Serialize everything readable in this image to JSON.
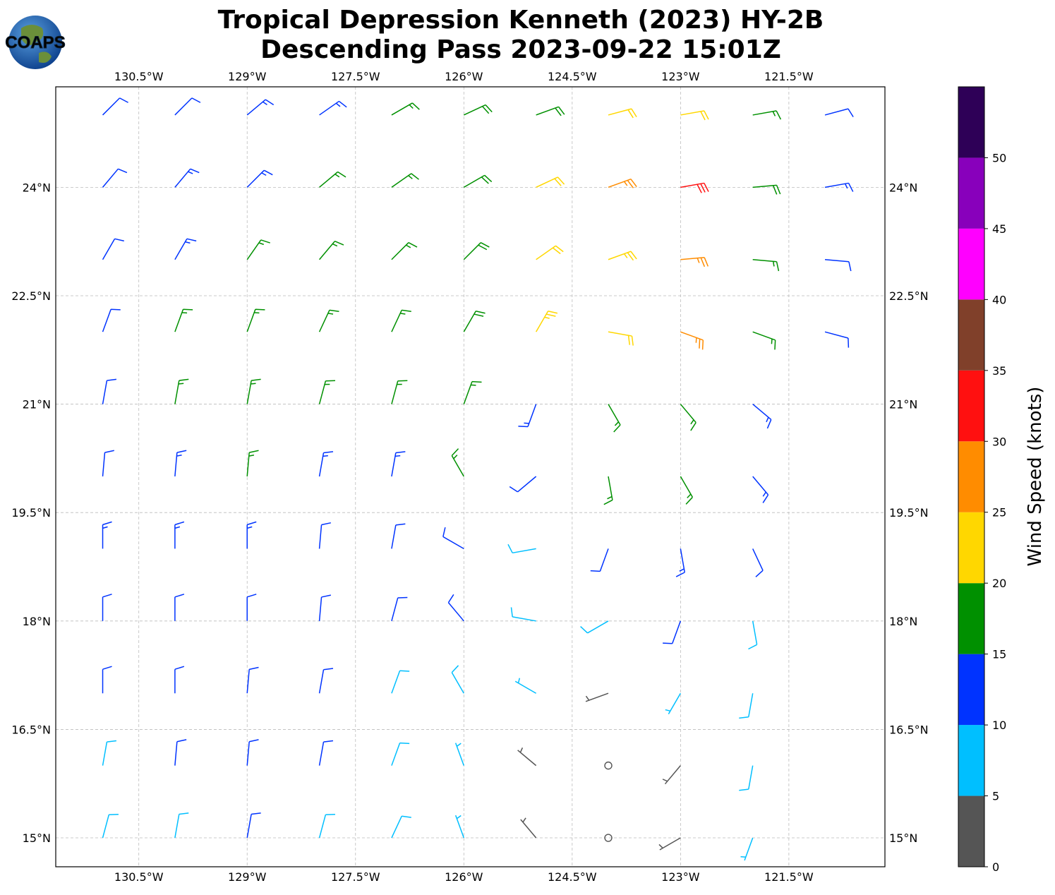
{
  "map": {
    "type": "wind_barbs",
    "title": [
      "Tropical Depression Kenneth (2023) HY-2B",
      "Descending Pass 2023-09-22 15:01Z"
    ],
    "logo_text": "COAPS",
    "xlim": [
      -131.65,
      -120.17
    ],
    "ylim": [
      14.6,
      25.39
    ],
    "xticks": [
      {
        "value": -130.5,
        "label": "130.5°W"
      },
      {
        "value": -129,
        "label": "129°W"
      },
      {
        "value": -127.5,
        "label": "127.5°W"
      },
      {
        "value": -126,
        "label": "126°W"
      },
      {
        "value": -124.5,
        "label": "124.5°W"
      },
      {
        "value": -123,
        "label": "123°W"
      },
      {
        "value": -121.5,
        "label": "121.5°W"
      }
    ],
    "yticks": [
      {
        "value": 24,
        "label": "24°N"
      },
      {
        "value": 22.5,
        "label": "22.5°N"
      },
      {
        "value": 21,
        "label": "21°N"
      },
      {
        "value": 19.5,
        "label": "19.5°N"
      },
      {
        "value": 18,
        "label": "18°N"
      },
      {
        "value": 16.5,
        "label": "16.5°N"
      },
      {
        "value": 15,
        "label": "15°N"
      }
    ],
    "grid": true,
    "lats": [
      25,
      24,
      23,
      22,
      21,
      20,
      19,
      18,
      17,
      16,
      15
    ],
    "lons": [
      -131,
      -130,
      -129,
      -128,
      -127,
      -126,
      -125,
      -124,
      -123,
      -122,
      -121
    ],
    "speed": [
      [
        12,
        12,
        13,
        14,
        17,
        18,
        19,
        22,
        22,
        17,
        12
      ],
      [
        12,
        13,
        14,
        16,
        17,
        18,
        21,
        27,
        31,
        18,
        13
      ],
      [
        12,
        14,
        16,
        17,
        17,
        18,
        22,
        24,
        27,
        17,
        12
      ],
      [
        11,
        15,
        17,
        17,
        17,
        18,
        23,
        20,
        26,
        16,
        12
      ],
      [
        11,
        16,
        17,
        17,
        17,
        16,
        13,
        17,
        17,
        14,
        null
      ],
      [
        12,
        13,
        16,
        14,
        14,
        17,
        12,
        15,
        17,
        13,
        null
      ],
      [
        13,
        13,
        13,
        12,
        12,
        12,
        8,
        12,
        14,
        12,
        null
      ],
      [
        12,
        12,
        12,
        12,
        10,
        10,
        8,
        8,
        11,
        9,
        null
      ],
      [
        12,
        12,
        12,
        11,
        9,
        8,
        6,
        3,
        7,
        8,
        null
      ],
      [
        9,
        12,
        11,
        10,
        9,
        7,
        4,
        2,
        4,
        8,
        null
      ],
      [
        9,
        9,
        10,
        8,
        8,
        7,
        3,
        2,
        4,
        6,
        null
      ]
    ],
    "direction": [
      [
        45,
        45,
        50,
        55,
        60,
        65,
        70,
        75,
        80,
        80,
        75
      ],
      [
        40,
        40,
        45,
        50,
        55,
        60,
        65,
        70,
        80,
        85,
        80
      ],
      [
        30,
        30,
        35,
        40,
        45,
        45,
        55,
        70,
        85,
        95,
        95
      ],
      [
        20,
        20,
        20,
        25,
        25,
        30,
        30,
        100,
        110,
        110,
        105
      ],
      [
        10,
        10,
        10,
        15,
        15,
        20,
        200,
        150,
        140,
        130,
        null
      ],
      [
        5,
        5,
        5,
        10,
        10,
        330,
        230,
        170,
        150,
        140,
        null
      ],
      [
        0,
        0,
        0,
        5,
        10,
        300,
        260,
        200,
        170,
        155,
        null
      ],
      [
        0,
        0,
        0,
        5,
        15,
        320,
        280,
        240,
        200,
        170,
        null
      ],
      [
        0,
        0,
        5,
        10,
        20,
        330,
        300,
        250,
        210,
        190,
        null
      ],
      [
        10,
        5,
        5,
        10,
        20,
        340,
        310,
        270,
        220,
        190,
        null
      ],
      [
        15,
        10,
        10,
        15,
        25,
        340,
        320,
        280,
        240,
        200,
        null
      ]
    ],
    "colorbar": {
      "label": "Wind Speed (knots)",
      "bounds": [
        0,
        5,
        10,
        15,
        20,
        25,
        30,
        35,
        40,
        45,
        50,
        55
      ],
      "colors": [
        "#555555",
        "#00bfff",
        "#0033ff",
        "#009000",
        "#ffd700",
        "#ff8c00",
        "#ff1010",
        "#80402a",
        "#ff00ff",
        "#8800bb",
        "#2e0057"
      ],
      "ticks": [
        0,
        5,
        10,
        15,
        20,
        25,
        30,
        35,
        40,
        45,
        50
      ]
    }
  }
}
